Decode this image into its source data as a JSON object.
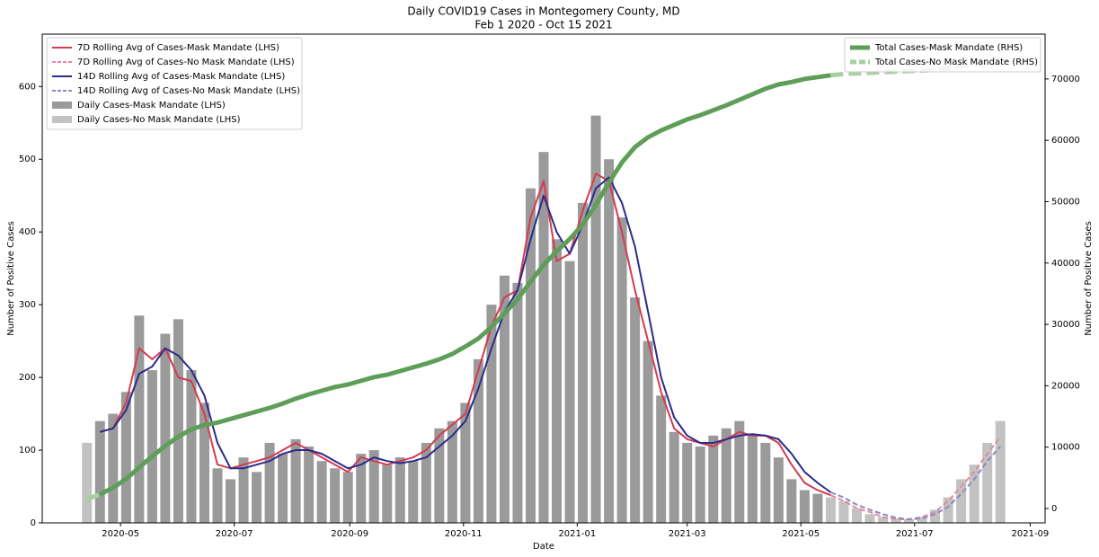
{
  "chart_data": {
    "type": "combo",
    "title": "Daily COVID19 Cases in Montegomery County, MD",
    "subtitle": "Feb 1 2020 - Oct 15 2021",
    "x_label": "Date",
    "y_label": "Number of Positive Cases",
    "y2_label": "Number of Positive Cases",
    "xlim": [
      "2020-03-20",
      "2021-09-09"
    ],
    "xticks": [
      {
        "value": "2020-05-01",
        "label": "2020-05"
      },
      {
        "value": "2020-07-01",
        "label": "2020-07"
      },
      {
        "value": "2020-09-01",
        "label": "2020-09"
      },
      {
        "value": "2020-11-01",
        "label": "2020-11"
      },
      {
        "value": "2021-01-01",
        "label": "2021-01"
      },
      {
        "value": "2021-03-01",
        "label": "2021-03"
      },
      {
        "value": "2021-05-01",
        "label": "2021-05"
      },
      {
        "value": "2021-07-01",
        "label": "2021-07"
      },
      {
        "value": "2021-09-01",
        "label": "2021-09"
      }
    ],
    "ylim": [
      0,
      672
    ],
    "yticks": [
      0,
      100,
      200,
      300,
      400,
      500,
      600
    ],
    "y2lim": [
      -2340,
      77300
    ],
    "y2ticks": [
      0,
      10000,
      20000,
      30000,
      40000,
      50000,
      60000,
      70000
    ],
    "legend": "upper left",
    "legend2": "upper right",
    "series": [
      {
        "name": "7D Rolling Avg of Cases-Mask Mandate (LHS)",
        "type": "line",
        "style": "solid",
        "color": "#d43a50",
        "axis": "y",
        "x": [
          "2020-04-20",
          "2020-04-27",
          "2020-05-04",
          "2020-05-11",
          "2020-05-18",
          "2020-05-25",
          "2020-06-01",
          "2020-06-08",
          "2020-06-15",
          "2020-06-22",
          "2020-06-29",
          "2020-07-06",
          "2020-07-13",
          "2020-07-20",
          "2020-07-27",
          "2020-08-03",
          "2020-08-10",
          "2020-08-17",
          "2020-08-24",
          "2020-08-31",
          "2020-09-07",
          "2020-09-14",
          "2020-09-21",
          "2020-09-28",
          "2020-10-05",
          "2020-10-12",
          "2020-10-19",
          "2020-10-26",
          "2020-11-02",
          "2020-11-09",
          "2020-11-16",
          "2020-11-23",
          "2020-11-30",
          "2020-12-07",
          "2020-12-14",
          "2020-12-21",
          "2020-12-28",
          "2021-01-04",
          "2021-01-11",
          "2021-01-18",
          "2021-01-25",
          "2021-02-01",
          "2021-02-08",
          "2021-02-15",
          "2021-02-22",
          "2021-03-01",
          "2021-03-08",
          "2021-03-15",
          "2021-03-22",
          "2021-03-29",
          "2021-04-05",
          "2021-04-12",
          "2021-04-19",
          "2021-04-26",
          "2021-05-03",
          "2021-05-10",
          "2021-05-17"
        ],
        "values": [
          125,
          130,
          165,
          240,
          225,
          240,
          200,
          195,
          150,
          80,
          75,
          80,
          85,
          90,
          100,
          110,
          100,
          90,
          80,
          70,
          90,
          85,
          80,
          85,
          90,
          100,
          120,
          135,
          150,
          210,
          270,
          310,
          320,
          420,
          470,
          360,
          370,
          430,
          480,
          470,
          400,
          320,
          250,
          180,
          130,
          115,
          110,
          105,
          115,
          125,
          120,
          120,
          110,
          80,
          55,
          45,
          38
        ]
      },
      {
        "name": "7D Rolling Avg of Cases-No Mask Mandate (LHS)",
        "type": "line",
        "style": "dashed",
        "color": "#e6899b",
        "axis": "y",
        "x": [
          "2021-05-17",
          "2021-05-24",
          "2021-05-31",
          "2021-06-07",
          "2021-06-14",
          "2021-06-21",
          "2021-06-28",
          "2021-07-05",
          "2021-07-12",
          "2021-07-19",
          "2021-07-26",
          "2021-08-02",
          "2021-08-09",
          "2021-08-16"
        ],
        "values": [
          38,
          30,
          20,
          15,
          8,
          5,
          5,
          8,
          15,
          30,
          50,
          70,
          95,
          118
        ]
      },
      {
        "name": "14D Rolling Avg of Cases-Mask Mandate (LHS)",
        "type": "line",
        "style": "solid",
        "color": "#2b2b8c",
        "axis": "y",
        "x": [
          "2020-04-20",
          "2020-04-27",
          "2020-05-04",
          "2020-05-11",
          "2020-05-18",
          "2020-05-25",
          "2020-06-01",
          "2020-06-08",
          "2020-06-15",
          "2020-06-22",
          "2020-06-29",
          "2020-07-06",
          "2020-07-13",
          "2020-07-20",
          "2020-07-27",
          "2020-08-03",
          "2020-08-10",
          "2020-08-17",
          "2020-08-24",
          "2020-08-31",
          "2020-09-07",
          "2020-09-14",
          "2020-09-21",
          "2020-09-28",
          "2020-10-05",
          "2020-10-12",
          "2020-10-19",
          "2020-10-26",
          "2020-11-02",
          "2020-11-09",
          "2020-11-16",
          "2020-11-23",
          "2020-11-30",
          "2020-12-07",
          "2020-12-14",
          "2020-12-21",
          "2020-12-28",
          "2021-01-04",
          "2021-01-11",
          "2021-01-18",
          "2021-01-25",
          "2021-02-01",
          "2021-02-08",
          "2021-02-15",
          "2021-02-22",
          "2021-03-01",
          "2021-03-08",
          "2021-03-15",
          "2021-03-22",
          "2021-03-29",
          "2021-04-05",
          "2021-04-12",
          "2021-04-19",
          "2021-04-26",
          "2021-05-03",
          "2021-05-10",
          "2021-05-17"
        ],
        "values": [
          125,
          130,
          155,
          205,
          215,
          240,
          230,
          210,
          175,
          110,
          75,
          75,
          80,
          85,
          95,
          100,
          100,
          95,
          85,
          75,
          80,
          90,
          85,
          82,
          85,
          90,
          105,
          120,
          140,
          185,
          240,
          290,
          320,
          390,
          450,
          400,
          370,
          410,
          460,
          475,
          440,
          380,
          290,
          200,
          145,
          120,
          110,
          110,
          115,
          120,
          122,
          120,
          115,
          95,
          70,
          55,
          42
        ]
      },
      {
        "name": "14D Rolling Avg of Cases-No Mask Mandate (LHS)",
        "type": "line",
        "style": "dashed",
        "color": "#8a8ac2",
        "axis": "y",
        "x": [
          "2021-05-17",
          "2021-05-24",
          "2021-05-31",
          "2021-06-07",
          "2021-06-14",
          "2021-06-21",
          "2021-06-28",
          "2021-07-05",
          "2021-07-12",
          "2021-07-19",
          "2021-07-26",
          "2021-08-02",
          "2021-08-09",
          "2021-08-16"
        ],
        "values": [
          42,
          35,
          25,
          18,
          12,
          7,
          5,
          6,
          12,
          22,
          40,
          60,
          85,
          105
        ]
      },
      {
        "name": "Daily Cases-Mask Mandate (LHS)",
        "type": "bar",
        "style": "solid",
        "color": "#9a9a9a",
        "axis": "y",
        "x": [
          "2020-04-20",
          "2020-04-27",
          "2020-05-04",
          "2020-05-11",
          "2020-05-18",
          "2020-05-25",
          "2020-06-01",
          "2020-06-08",
          "2020-06-15",
          "2020-06-22",
          "2020-06-29",
          "2020-07-06",
          "2020-07-13",
          "2020-07-20",
          "2020-07-27",
          "2020-08-03",
          "2020-08-10",
          "2020-08-17",
          "2020-08-24",
          "2020-08-31",
          "2020-09-07",
          "2020-09-14",
          "2020-09-21",
          "2020-09-28",
          "2020-10-05",
          "2020-10-12",
          "2020-10-19",
          "2020-10-26",
          "2020-11-02",
          "2020-11-09",
          "2020-11-16",
          "2020-11-23",
          "2020-11-30",
          "2020-12-07",
          "2020-12-14",
          "2020-12-21",
          "2020-12-28",
          "2021-01-04",
          "2021-01-11",
          "2021-01-18",
          "2021-01-25",
          "2021-02-01",
          "2021-02-08",
          "2021-02-15",
          "2021-02-22",
          "2021-03-01",
          "2021-03-08",
          "2021-03-15",
          "2021-03-22",
          "2021-03-29",
          "2021-04-05",
          "2021-04-12",
          "2021-04-19",
          "2021-04-26",
          "2021-05-03",
          "2021-05-10"
        ],
        "values": [
          140,
          150,
          180,
          285,
          210,
          260,
          280,
          210,
          165,
          75,
          60,
          90,
          70,
          110,
          95,
          115,
          105,
          85,
          75,
          70,
          95,
          100,
          80,
          90,
          85,
          110,
          130,
          140,
          165,
          225,
          300,
          340,
          330,
          460,
          510,
          390,
          360,
          440,
          560,
          500,
          420,
          310,
          250,
          175,
          125,
          110,
          105,
          120,
          130,
          140,
          120,
          110,
          90,
          60,
          45,
          40
        ]
      },
      {
        "name": "Daily Cases-No Mask Mandate (LHS)",
        "type": "bar",
        "style": "solid",
        "color": "#c2c2c2",
        "axis": "y",
        "x": [
          "2020-04-13",
          "2021-05-17",
          "2021-05-24",
          "2021-05-31",
          "2021-06-07",
          "2021-06-14",
          "2021-06-21",
          "2021-06-28",
          "2021-07-05",
          "2021-07-12",
          "2021-07-19",
          "2021-07-26",
          "2021-08-02",
          "2021-08-09",
          "2021-08-16"
        ],
        "values": [
          110,
          35,
          30,
          20,
          12,
          8,
          6,
          5,
          8,
          18,
          35,
          60,
          80,
          110,
          140
        ]
      },
      {
        "name": "Total Cases-Mask Mandate (RHS)",
        "type": "line",
        "style": "solid",
        "color": "#5e9e58",
        "axis": "y2",
        "x": [
          "2020-04-20",
          "2020-04-27",
          "2020-05-04",
          "2020-05-11",
          "2020-05-18",
          "2020-05-25",
          "2020-06-01",
          "2020-06-08",
          "2020-06-15",
          "2020-06-22",
          "2020-06-29",
          "2020-07-06",
          "2020-07-13",
          "2020-07-20",
          "2020-07-27",
          "2020-08-03",
          "2020-08-10",
          "2020-08-17",
          "2020-08-24",
          "2020-08-31",
          "2020-09-07",
          "2020-09-14",
          "2020-09-21",
          "2020-09-28",
          "2020-10-05",
          "2020-10-12",
          "2020-10-19",
          "2020-10-26",
          "2020-11-02",
          "2020-11-09",
          "2020-11-16",
          "2020-11-23",
          "2020-11-30",
          "2020-12-07",
          "2020-12-14",
          "2020-12-21",
          "2020-12-28",
          "2021-01-04",
          "2021-01-11",
          "2021-01-18",
          "2021-01-25",
          "2021-02-01",
          "2021-02-08",
          "2021-02-15",
          "2021-02-22",
          "2021-03-01",
          "2021-03-08",
          "2021-03-15",
          "2021-03-22",
          "2021-03-29",
          "2021-04-05",
          "2021-04-12",
          "2021-04-19",
          "2021-04-26",
          "2021-05-03",
          "2021-05-10",
          "2021-05-17"
        ],
        "values": [
          2300,
          3400,
          4800,
          6700,
          8500,
          10200,
          11700,
          12900,
          13600,
          14000,
          14600,
          15200,
          15800,
          16400,
          17100,
          17900,
          18600,
          19200,
          19800,
          20200,
          20800,
          21400,
          21800,
          22400,
          23000,
          23600,
          24300,
          25200,
          26400,
          27700,
          29600,
          31800,
          34100,
          37000,
          39700,
          41900,
          43900,
          46300,
          49500,
          53100,
          56400,
          58900,
          60500,
          61600,
          62500,
          63400,
          64100,
          64900,
          65700,
          66600,
          67500,
          68400,
          69100,
          69500,
          70000,
          70300,
          70600
        ]
      },
      {
        "name": "Total Cases-No Mask Mandate (RHS)",
        "type": "line",
        "style": "dashed",
        "color": "#a9d0a2",
        "axis": "y2",
        "x": [
          "2020-04-13",
          "2020-04-20",
          "2020-04-27",
          "2021-05-17",
          "2021-05-24",
          "2021-05-31",
          "2021-06-07",
          "2021-06-14",
          "2021-06-21",
          "2021-06-28",
          "2021-07-05",
          "2021-07-12",
          "2021-07-19",
          "2021-07-26",
          "2021-08-02",
          "2021-08-09",
          "2021-08-16"
        ],
        "values": [
          1500,
          2300,
          null,
          70600,
          70800,
          70900,
          71000,
          71100,
          71200,
          71300,
          71350,
          71500,
          71700,
          72000,
          72400,
          73000,
          73700
        ]
      }
    ]
  }
}
